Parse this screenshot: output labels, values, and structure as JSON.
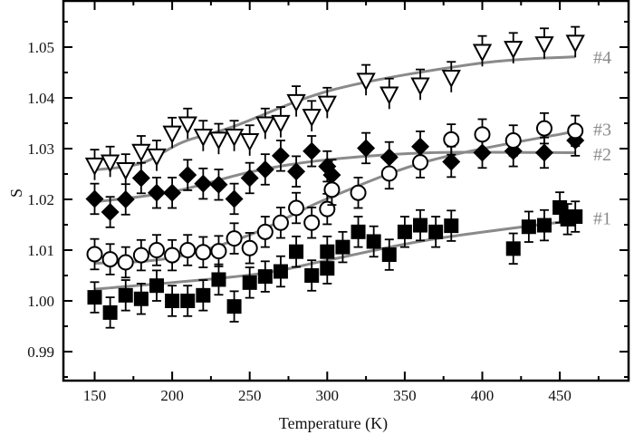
{
  "chart_data": {
    "type": "scatter",
    "title": "",
    "xlabel": "Temperature (K)",
    "ylabel": "S",
    "xlim": [
      130,
      495
    ],
    "ylim": [
      0.9845,
      1.0593
    ],
    "xticks": [
      150,
      200,
      250,
      300,
      350,
      400,
      450
    ],
    "xtick_labels": [
      "150",
      "200",
      "250",
      "300",
      "350",
      "400",
      "450"
    ],
    "yticks": [
      0.99,
      1.0,
      1.01,
      1.02,
      1.03,
      1.04,
      1.05
    ],
    "ytick_labels": [
      "0.99",
      "1.00",
      "1.01",
      "1.02",
      "1.03",
      "1.04",
      "1.05"
    ],
    "grid": false,
    "fit_line_color": "#8a8a8a",
    "label_color": "#8a8a8a",
    "error": 0.003,
    "series": [
      {
        "name": "#1",
        "marker": "filled-square",
        "x": [
          150,
          160,
          170,
          180,
          190,
          200,
          210,
          220,
          230,
          240,
          250,
          260,
          270,
          280,
          290,
          300,
          300,
          310,
          320,
          330,
          340,
          350,
          360,
          370,
          380,
          420,
          430,
          440,
          450,
          455,
          460
        ],
        "y": [
          1.0007,
          0.9977,
          1.0011,
          1.0004,
          1.003,
          1.0,
          1.0,
          1.0011,
          1.0042,
          0.9989,
          1.0036,
          1.0048,
          1.0058,
          1.0097,
          1.005,
          1.0064,
          1.0097,
          1.0106,
          1.0136,
          1.0117,
          1.0091,
          1.0136,
          1.0149,
          1.0136,
          1.0148,
          1.0103,
          1.0146,
          1.0149,
          1.0184,
          1.0161,
          1.0166
        ],
        "fit": {
          "x": [
            150,
            250,
            300,
            367,
            460
          ],
          "y": [
            1.0023,
            1.0051,
            1.008,
            1.0121,
            1.0159
          ]
        },
        "label_value": 1.0163
      },
      {
        "name": "#2",
        "marker": "filled-diamond",
        "x": [
          150,
          160,
          170,
          180,
          190,
          200,
          210,
          220,
          230,
          240,
          250,
          260,
          270,
          280,
          290,
          300,
          303,
          325,
          340,
          360,
          380,
          400,
          420,
          440,
          460
        ],
        "y": [
          1.0201,
          1.0175,
          1.02,
          1.0242,
          1.0213,
          1.0213,
          1.0248,
          1.0231,
          1.0229,
          1.0201,
          1.0242,
          1.0259,
          1.0286,
          1.0255,
          1.0295,
          1.0265,
          1.0248,
          1.0301,
          1.0283,
          1.0304,
          1.0274,
          1.0292,
          1.0295,
          1.0292,
          1.0316
        ],
        "fit": {
          "x": [
            150,
            200,
            252,
            300,
            367,
            460
          ],
          "y": [
            1.0195,
            1.0215,
            1.0255,
            1.0278,
            1.0292,
            1.0292
          ]
        },
        "label_value": 1.0289
      },
      {
        "name": "#3",
        "marker": "open-circle",
        "x": [
          150,
          160,
          170,
          180,
          190,
          200,
          210,
          220,
          230,
          240,
          250,
          260,
          270,
          280,
          290,
          300,
          303,
          320,
          340,
          360,
          380,
          400,
          420,
          440,
          460
        ],
        "y": [
          1.0092,
          1.0082,
          1.0076,
          1.009,
          1.01,
          1.009,
          1.01,
          1.0096,
          1.0098,
          1.0123,
          1.0104,
          1.0136,
          1.0154,
          1.0183,
          1.0154,
          1.0181,
          1.0219,
          1.0213,
          1.0251,
          1.0273,
          1.0318,
          1.0328,
          1.0316,
          1.034,
          1.0335
        ],
        "fit": {
          "x": [
            150,
            198,
            250,
            299,
            367,
            460
          ],
          "y": [
            1.0074,
            1.0084,
            1.013,
            1.02,
            1.0277,
            1.0334
          ]
        },
        "label_value": 1.0338
      },
      {
        "name": "#4",
        "marker": "open-triangle-down",
        "x": [
          150,
          160,
          170,
          180,
          190,
          200,
          210,
          220,
          230,
          240,
          250,
          260,
          270,
          280,
          290,
          300,
          325,
          340,
          360,
          380,
          400,
          420,
          440,
          460
        ],
        "y": [
          1.0268,
          1.0274,
          1.0259,
          1.0295,
          1.0286,
          1.0331,
          1.0349,
          1.0325,
          1.0319,
          1.0325,
          1.0316,
          1.0349,
          1.0352,
          1.0393,
          1.0364,
          1.039,
          1.0435,
          1.0408,
          1.0426,
          1.0441,
          1.0492,
          1.0498,
          1.0507,
          1.051
        ],
        "fit": {
          "x": [
            150,
            180,
            207,
            239,
            305,
            398,
            460
          ],
          "y": [
            1.0258,
            1.0271,
            1.0313,
            1.0343,
            1.0417,
            1.0468,
            1.0481
          ]
        },
        "label_value": 1.048
      }
    ]
  }
}
